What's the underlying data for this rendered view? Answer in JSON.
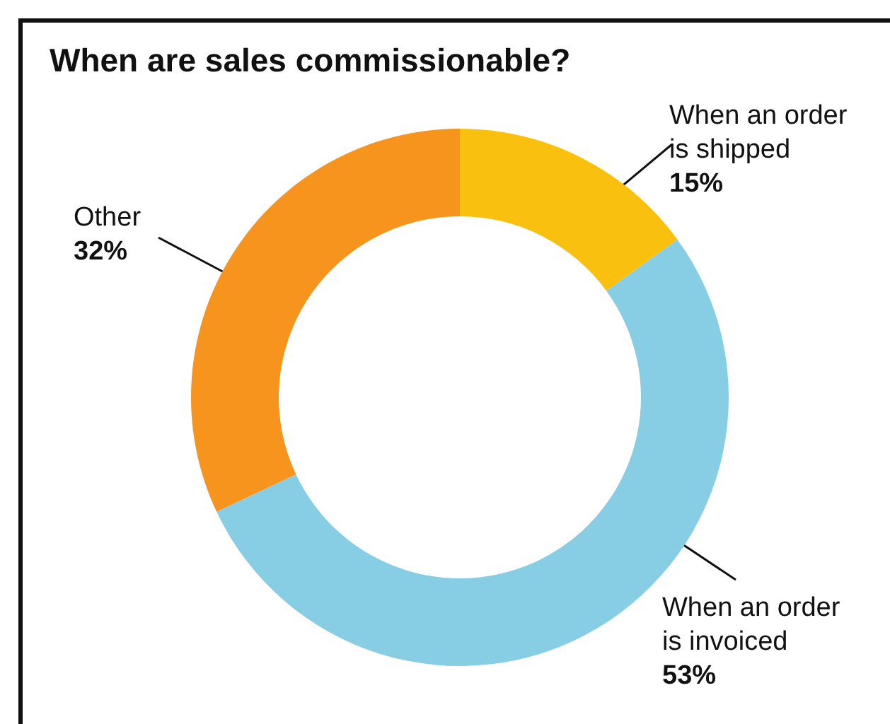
{
  "chart_data": {
    "type": "donut",
    "title": "When are sales commissionable?",
    "categories": [
      "When an order\nis shipped",
      "When an order\nis invoiced",
      "Other"
    ],
    "values": [
      15,
      53,
      32
    ],
    "colors": [
      "#f9c00f",
      "#87cee4",
      "#f7941d"
    ],
    "value_labels": [
      "15%",
      "53%",
      "32%"
    ],
    "legend": false
  }
}
